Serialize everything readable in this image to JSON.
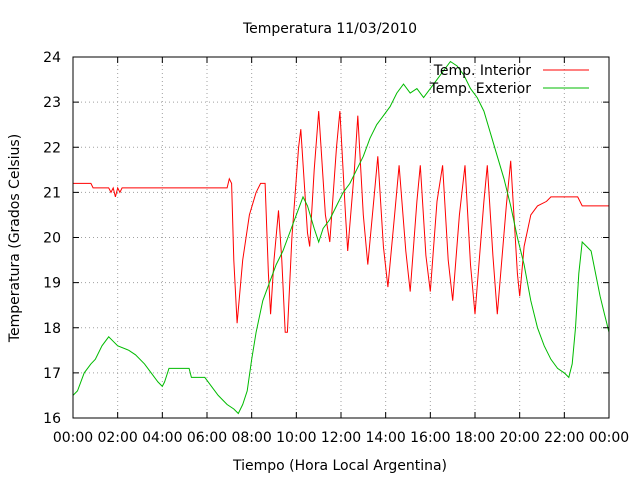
{
  "chart_data": {
    "type": "line",
    "title": "Temperatura 11/03/2010",
    "xlabel": "Tiempo (Hora Local Argentina)",
    "ylabel": "Temperatura (Grados Celsius)",
    "xlim": [
      0,
      24
    ],
    "ylim": [
      16,
      24
    ],
    "grid": true,
    "legend_position": "top-right",
    "x_ticks": [
      {
        "value": 0,
        "label": "00:00"
      },
      {
        "value": 2,
        "label": "02:00"
      },
      {
        "value": 4,
        "label": "04:00"
      },
      {
        "value": 6,
        "label": "06:00"
      },
      {
        "value": 8,
        "label": "08:00"
      },
      {
        "value": 10,
        "label": "10:00"
      },
      {
        "value": 12,
        "label": "12:00"
      },
      {
        "value": 14,
        "label": "14:00"
      },
      {
        "value": 16,
        "label": "16:00"
      },
      {
        "value": 18,
        "label": "18:00"
      },
      {
        "value": 20,
        "label": "20:00"
      },
      {
        "value": 22,
        "label": "22:00"
      },
      {
        "value": 24,
        "label": "00:00"
      }
    ],
    "y_ticks": [
      {
        "value": 16,
        "label": "16"
      },
      {
        "value": 17,
        "label": "17"
      },
      {
        "value": 18,
        "label": "18"
      },
      {
        "value": 19,
        "label": "19"
      },
      {
        "value": 20,
        "label": "20"
      },
      {
        "value": 21,
        "label": "21"
      },
      {
        "value": 22,
        "label": "22"
      },
      {
        "value": 23,
        "label": "23"
      },
      {
        "value": 24,
        "label": "24"
      }
    ],
    "series": [
      {
        "name": "Temp. Interior",
        "color": "#ff0000",
        "points": [
          [
            0,
            21.2
          ],
          [
            0.8,
            21.2
          ],
          [
            0.9,
            21.1
          ],
          [
            1.6,
            21.1
          ],
          [
            1.7,
            21.0
          ],
          [
            1.8,
            21.1
          ],
          [
            1.9,
            20.9
          ],
          [
            2.0,
            21.1
          ],
          [
            2.1,
            21.0
          ],
          [
            2.2,
            21.1
          ],
          [
            6.8,
            21.1
          ],
          [
            6.9,
            21.1
          ],
          [
            7.0,
            21.3
          ],
          [
            7.1,
            21.2
          ],
          [
            7.2,
            19.5
          ],
          [
            7.35,
            18.1
          ],
          [
            7.6,
            19.5
          ],
          [
            7.9,
            20.5
          ],
          [
            8.2,
            21.0
          ],
          [
            8.4,
            21.2
          ],
          [
            8.6,
            21.2
          ],
          [
            8.75,
            19.2
          ],
          [
            8.85,
            18.3
          ],
          [
            9.0,
            19.5
          ],
          [
            9.2,
            20.6
          ],
          [
            9.35,
            19.5
          ],
          [
            9.5,
            17.9
          ],
          [
            9.6,
            17.9
          ],
          [
            9.8,
            20.0
          ],
          [
            10.1,
            22.0
          ],
          [
            10.2,
            22.4
          ],
          [
            10.5,
            20.1
          ],
          [
            10.6,
            19.8
          ],
          [
            10.8,
            21.5
          ],
          [
            11.0,
            22.8
          ],
          [
            11.3,
            20.5
          ],
          [
            11.5,
            19.9
          ],
          [
            11.8,
            22.0
          ],
          [
            11.95,
            22.8
          ],
          [
            12.2,
            20.5
          ],
          [
            12.3,
            19.7
          ],
          [
            12.6,
            21.5
          ],
          [
            12.75,
            22.7
          ],
          [
            13.0,
            20.5
          ],
          [
            13.2,
            19.4
          ],
          [
            13.5,
            21.0
          ],
          [
            13.65,
            21.8
          ],
          [
            13.9,
            19.8
          ],
          [
            14.1,
            18.9
          ],
          [
            14.4,
            20.5
          ],
          [
            14.6,
            21.6
          ],
          [
            14.9,
            19.7
          ],
          [
            15.1,
            18.8
          ],
          [
            15.4,
            20.8
          ],
          [
            15.55,
            21.6
          ],
          [
            15.8,
            19.6
          ],
          [
            16.0,
            18.8
          ],
          [
            16.3,
            20.8
          ],
          [
            16.55,
            21.6
          ],
          [
            16.8,
            19.5
          ],
          [
            17.0,
            18.6
          ],
          [
            17.3,
            20.5
          ],
          [
            17.55,
            21.6
          ],
          [
            17.8,
            19.4
          ],
          [
            18.0,
            18.3
          ],
          [
            18.4,
            20.8
          ],
          [
            18.55,
            21.6
          ],
          [
            18.8,
            19.6
          ],
          [
            19.0,
            18.3
          ],
          [
            19.4,
            20.7
          ],
          [
            19.6,
            21.7
          ],
          [
            19.9,
            19.2
          ],
          [
            20.0,
            18.7
          ],
          [
            20.2,
            19.8
          ],
          [
            20.5,
            20.5
          ],
          [
            20.8,
            20.7
          ],
          [
            21.2,
            20.8
          ],
          [
            21.4,
            20.9
          ],
          [
            22.0,
            20.9
          ],
          [
            22.6,
            20.9
          ],
          [
            22.8,
            20.7
          ],
          [
            24.0,
            20.7
          ]
        ]
      },
      {
        "name": "Temp. Exterior",
        "color": "#00bb00",
        "points": [
          [
            0,
            16.5
          ],
          [
            0.2,
            16.6
          ],
          [
            0.5,
            17.0
          ],
          [
            0.8,
            17.2
          ],
          [
            1.0,
            17.3
          ],
          [
            1.3,
            17.6
          ],
          [
            1.6,
            17.8
          ],
          [
            1.8,
            17.7
          ],
          [
            2.0,
            17.6
          ],
          [
            2.5,
            17.5
          ],
          [
            2.8,
            17.4
          ],
          [
            3.2,
            17.2
          ],
          [
            3.5,
            17.0
          ],
          [
            3.8,
            16.8
          ],
          [
            4.0,
            16.7
          ],
          [
            4.1,
            16.8
          ],
          [
            4.3,
            17.1
          ],
          [
            5.2,
            17.1
          ],
          [
            5.3,
            16.9
          ],
          [
            5.9,
            16.9
          ],
          [
            6.2,
            16.7
          ],
          [
            6.5,
            16.5
          ],
          [
            6.9,
            16.3
          ],
          [
            7.2,
            16.2
          ],
          [
            7.4,
            16.1
          ],
          [
            7.6,
            16.3
          ],
          [
            7.8,
            16.6
          ],
          [
            8.0,
            17.3
          ],
          [
            8.2,
            17.9
          ],
          [
            8.5,
            18.6
          ],
          [
            8.8,
            19.0
          ],
          [
            9.1,
            19.4
          ],
          [
            9.4,
            19.7
          ],
          [
            9.7,
            20.1
          ],
          [
            10.0,
            20.5
          ],
          [
            10.3,
            20.9
          ],
          [
            10.5,
            20.7
          ],
          [
            10.8,
            20.2
          ],
          [
            11.0,
            19.9
          ],
          [
            11.2,
            20.2
          ],
          [
            11.5,
            20.4
          ],
          [
            11.8,
            20.7
          ],
          [
            12.1,
            21.0
          ],
          [
            12.4,
            21.2
          ],
          [
            12.7,
            21.5
          ],
          [
            13.0,
            21.8
          ],
          [
            13.3,
            22.2
          ],
          [
            13.6,
            22.5
          ],
          [
            13.9,
            22.7
          ],
          [
            14.2,
            22.9
          ],
          [
            14.5,
            23.2
          ],
          [
            14.8,
            23.4
          ],
          [
            15.1,
            23.2
          ],
          [
            15.4,
            23.3
          ],
          [
            15.7,
            23.1
          ],
          [
            16.0,
            23.3
          ],
          [
            16.3,
            23.5
          ],
          [
            16.6,
            23.7
          ],
          [
            16.9,
            23.9
          ],
          [
            17.2,
            23.8
          ],
          [
            17.5,
            23.6
          ],
          [
            17.8,
            23.3
          ],
          [
            18.1,
            23.1
          ],
          [
            18.4,
            22.8
          ],
          [
            18.7,
            22.3
          ],
          [
            19.0,
            21.8
          ],
          [
            19.3,
            21.3
          ],
          [
            19.6,
            20.7
          ],
          [
            19.9,
            20.0
          ],
          [
            20.2,
            19.4
          ],
          [
            20.5,
            18.6
          ],
          [
            20.8,
            18.0
          ],
          [
            21.1,
            17.6
          ],
          [
            21.4,
            17.3
          ],
          [
            21.7,
            17.1
          ],
          [
            22.0,
            17.0
          ],
          [
            22.2,
            16.9
          ],
          [
            22.35,
            17.2
          ],
          [
            22.5,
            18.0
          ],
          [
            22.65,
            19.2
          ],
          [
            22.8,
            19.9
          ],
          [
            23.0,
            19.8
          ],
          [
            23.2,
            19.7
          ],
          [
            23.4,
            19.2
          ],
          [
            23.6,
            18.7
          ],
          [
            23.8,
            18.3
          ],
          [
            24.0,
            17.9
          ]
        ]
      }
    ]
  }
}
